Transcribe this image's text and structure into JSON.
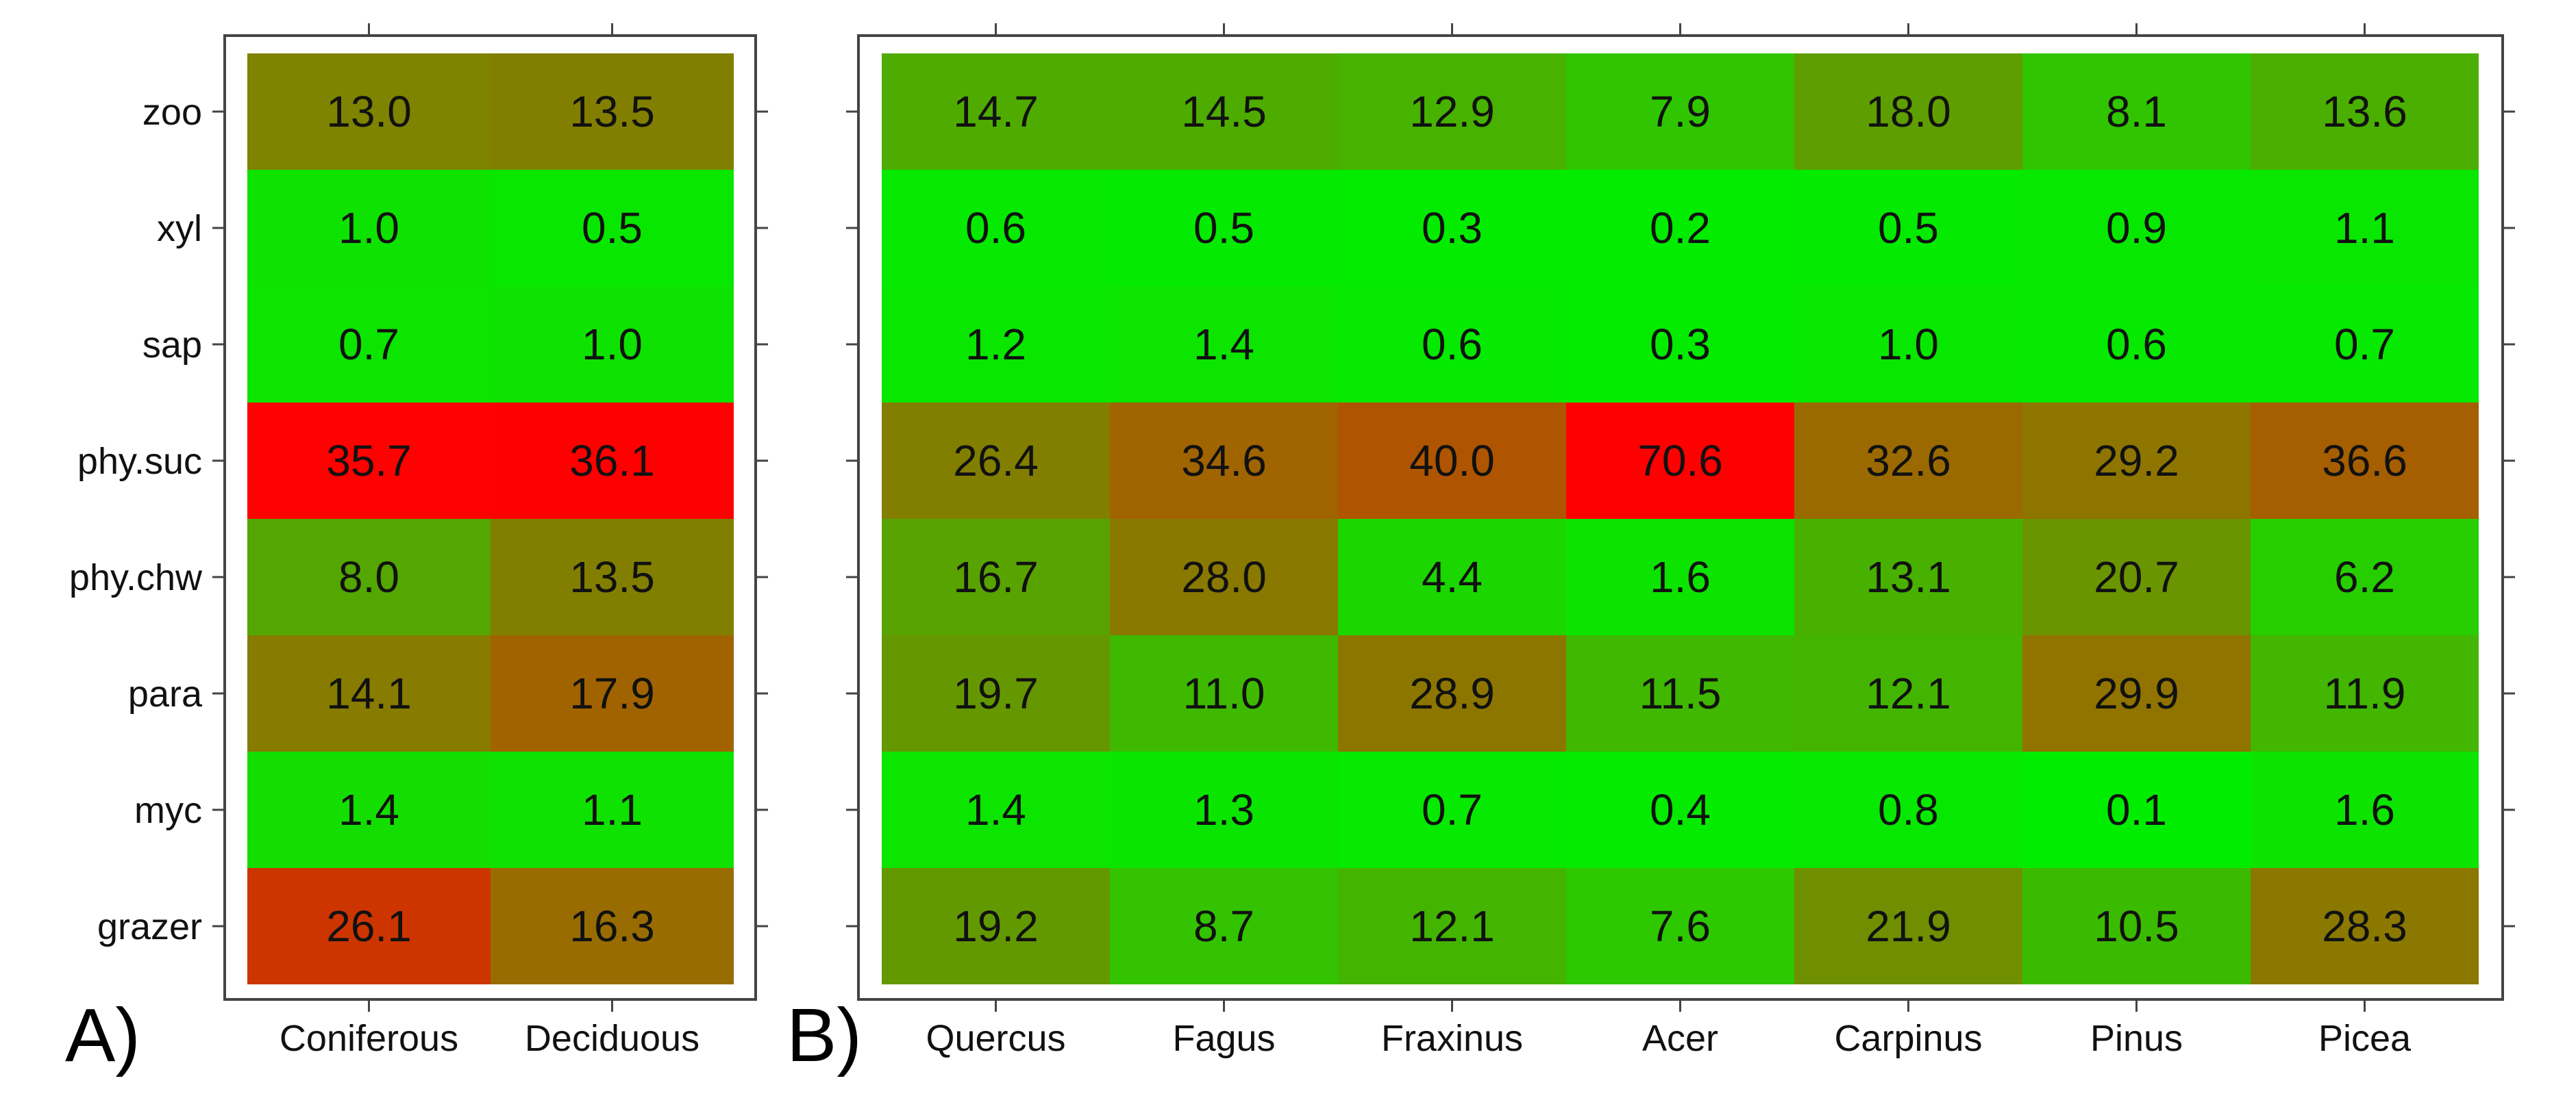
{
  "chart_data": [
    {
      "type": "heatmap",
      "panel_label": "A)",
      "rows": [
        "zoo",
        "xyl",
        "sap",
        "phy.suc",
        "phy.chw",
        "para",
        "myc",
        "grazer"
      ],
      "columns": [
        "Coniferous",
        "Deciduous"
      ],
      "values": [
        [
          13.0,
          13.5
        ],
        [
          1.0,
          0.5
        ],
        [
          0.7,
          1.0
        ],
        [
          35.7,
          36.1
        ],
        [
          8.0,
          13.5
        ],
        [
          14.1,
          17.9
        ],
        [
          1.4,
          1.1
        ],
        [
          26.1,
          16.3
        ]
      ],
      "labels": [
        [
          "13.0",
          "13.5"
        ],
        [
          "1.0",
          "0.5"
        ],
        [
          "0.7",
          "1.0"
        ],
        [
          "35.7",
          "36.1"
        ],
        [
          "8.0",
          "13.5"
        ],
        [
          "14.1",
          "17.9"
        ],
        [
          "1.4",
          "1.1"
        ],
        [
          "26.1",
          "16.3"
        ]
      ],
      "color_scale": {
        "low": "#00ee00",
        "high": "#ff0000",
        "max": 36.1
      },
      "grid": false
    },
    {
      "type": "heatmap",
      "panel_label": "B)",
      "rows": [
        "zoo",
        "xyl",
        "sap",
        "phy.suc",
        "phy.chw",
        "para",
        "myc",
        "grazer"
      ],
      "columns": [
        "Quercus",
        "Fagus",
        "Fraxinus",
        "Acer",
        "Carpinus",
        "Pinus",
        "Picea"
      ],
      "values": [
        [
          14.7,
          14.5,
          12.9,
          7.9,
          18.0,
          8.1,
          13.6
        ],
        [
          0.6,
          0.5,
          0.3,
          0.2,
          0.5,
          0.9,
          1.1
        ],
        [
          1.2,
          1.4,
          0.6,
          0.3,
          1.0,
          0.6,
          0.7
        ],
        [
          26.4,
          34.6,
          40.0,
          70.6,
          32.6,
          29.2,
          36.6
        ],
        [
          16.7,
          28.0,
          4.4,
          1.6,
          13.1,
          20.7,
          6.2
        ],
        [
          19.7,
          11.0,
          28.9,
          11.5,
          12.1,
          29.9,
          11.9
        ],
        [
          1.4,
          1.3,
          0.7,
          0.4,
          0.8,
          0.1,
          1.6
        ],
        [
          19.2,
          8.7,
          12.1,
          7.6,
          21.9,
          10.5,
          28.3
        ]
      ],
      "labels": [
        [
          "14.7",
          "14.5",
          "12.9",
          "7.9",
          "18.0",
          "8.1",
          "13.6"
        ],
        [
          "0.6",
          "0.5",
          "0.3",
          "0.2",
          "0.5",
          "0.9",
          "1.1"
        ],
        [
          "1.2",
          "1.4",
          "0.6",
          "0.3",
          "1.0",
          "0.6",
          "0.7"
        ],
        [
          "26.4",
          "34.6",
          "40.0",
          "70.6",
          "32.6",
          "29.2",
          "36.6"
        ],
        [
          "16.7",
          "28.0",
          "4.4",
          "1.6",
          "13.1",
          "20.7",
          "6.2"
        ],
        [
          "19.7",
          "11.0",
          "28.9",
          "11.5",
          "12.1",
          "29.9",
          "11.9"
        ],
        [
          "1.4",
          "1.3",
          "0.7",
          "0.4",
          "0.8",
          "0.1",
          "1.6"
        ],
        [
          "19.2",
          "8.7",
          "12.1",
          "7.6",
          "21.9",
          "10.5",
          "28.3"
        ]
      ],
      "color_scale": {
        "low": "#00ee00",
        "high": "#ff0000",
        "max": 70.6
      },
      "grid": false
    }
  ]
}
